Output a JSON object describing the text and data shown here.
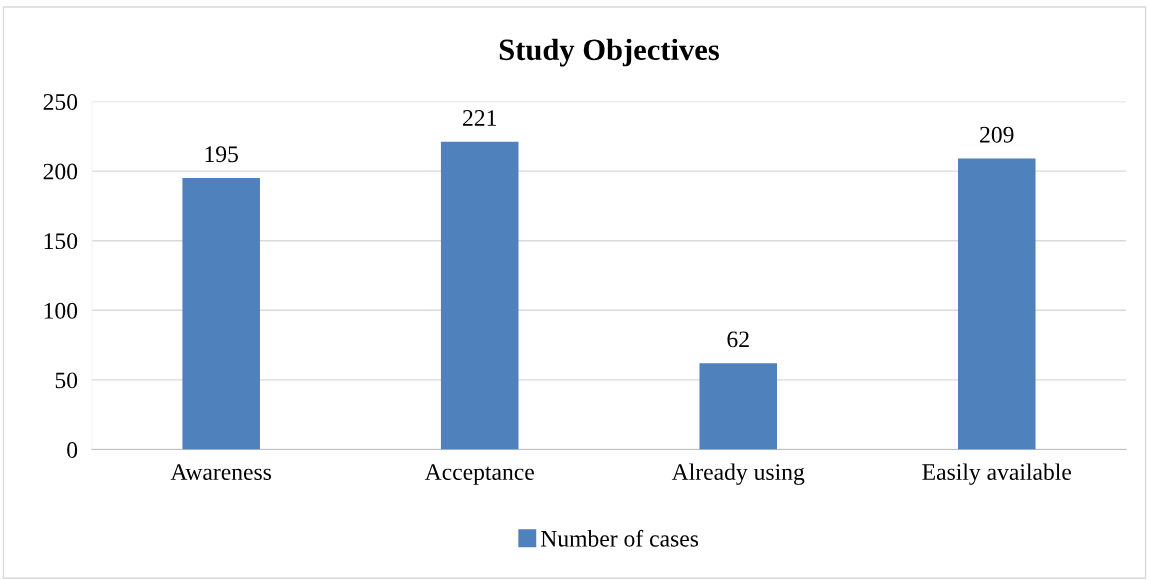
{
  "chart_data": {
    "type": "bar",
    "title": "Study Objectives",
    "categories": [
      "Awareness",
      "Acceptance",
      "Already using",
      "Easily available"
    ],
    "series": [
      {
        "name": "Number of cases",
        "color": "#4f81bd",
        "values": [
          195,
          221,
          62,
          209
        ]
      }
    ],
    "ylim": [
      0,
      250
    ],
    "yticks": [
      0,
      50,
      100,
      150,
      200,
      250
    ],
    "grid": "y",
    "legend": "bottom",
    "data_labels": true
  }
}
